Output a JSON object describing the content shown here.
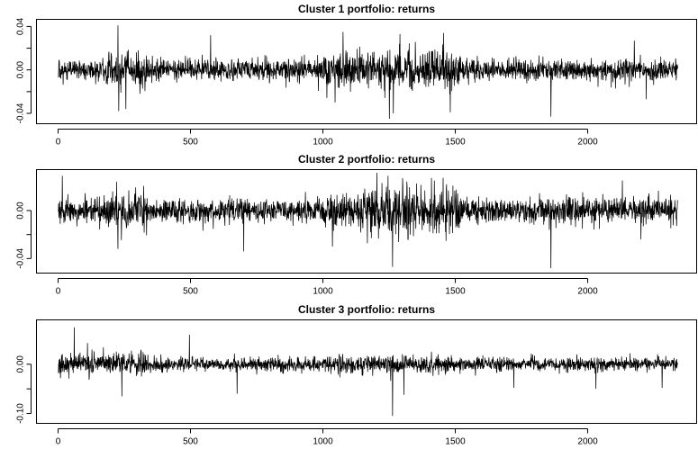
{
  "chart_data": [
    {
      "type": "line",
      "title": "Cluster 1 portfolio: returns",
      "xlabel": "",
      "ylabel": "",
      "xlim": [
        0,
        2340
      ],
      "ylim": [
        -0.045,
        0.042
      ],
      "xticks": [
        0,
        500,
        1000,
        1500,
        2000
      ],
      "xtick_labels": [
        "0",
        "500",
        "1000",
        "1500",
        "2000"
      ],
      "yticks": [
        -0.04,
        0.0,
        0.04
      ],
      "ytick_labels": [
        "-0.04",
        "0.00",
        "0.04"
      ],
      "grid": false,
      "color": "#000000",
      "n_points": 2340,
      "base_sd": 0.0065,
      "regimes": [
        {
          "x": [
            0,
            180
          ],
          "sd": 0.006
        },
        {
          "x": [
            180,
            340
          ],
          "sd": 0.01
        },
        {
          "x": [
            340,
            1000
          ],
          "sd": 0.006
        },
        {
          "x": [
            1000,
            1150
          ],
          "sd": 0.01
        },
        {
          "x": [
            1150,
            1520
          ],
          "sd": 0.011
        },
        {
          "x": [
            1520,
            1800
          ],
          "sd": 0.006
        },
        {
          "x": [
            1800,
            2340
          ],
          "sd": 0.006
        }
      ],
      "spikes": [
        {
          "x": 225,
          "y": 0.041
        },
        {
          "x": 228,
          "y": -0.038
        },
        {
          "x": 255,
          "y": -0.036
        },
        {
          "x": 575,
          "y": 0.032
        },
        {
          "x": 1045,
          "y": -0.03
        },
        {
          "x": 1075,
          "y": 0.035
        },
        {
          "x": 1250,
          "y": -0.045
        },
        {
          "x": 1265,
          "y": -0.04
        },
        {
          "x": 1290,
          "y": 0.033
        },
        {
          "x": 1455,
          "y": 0.034
        },
        {
          "x": 1480,
          "y": -0.039
        },
        {
          "x": 1860,
          "y": -0.043
        },
        {
          "x": 2175,
          "y": 0.027
        },
        {
          "x": 2220,
          "y": -0.027
        }
      ]
    },
    {
      "type": "line",
      "title": "Cluster 2 portfolio: returns",
      "xlabel": "",
      "ylabel": "",
      "xlim": [
        0,
        2340
      ],
      "ylim": [
        -0.048,
        0.03
      ],
      "xticks": [
        0,
        500,
        1000,
        1500,
        2000
      ],
      "xtick_labels": [
        "0",
        "500",
        "1000",
        "1500",
        "2000"
      ],
      "yticks": [
        -0.04,
        0.0
      ],
      "ytick_labels": [
        "-0.04",
        "0.00"
      ],
      "grid": false,
      "color": "#000000",
      "n_points": 2340,
      "base_sd": 0.006,
      "regimes": [
        {
          "x": [
            0,
            180
          ],
          "sd": 0.006
        },
        {
          "x": [
            180,
            340
          ],
          "sd": 0.009
        },
        {
          "x": [
            340,
            1000
          ],
          "sd": 0.006
        },
        {
          "x": [
            1000,
            1150
          ],
          "sd": 0.008
        },
        {
          "x": [
            1150,
            1520
          ],
          "sd": 0.011
        },
        {
          "x": [
            1520,
            1800
          ],
          "sd": 0.006
        },
        {
          "x": [
            1800,
            2340
          ],
          "sd": 0.0065
        }
      ],
      "spikes": [
        {
          "x": 15,
          "y": 0.029
        },
        {
          "x": 225,
          "y": -0.032
        },
        {
          "x": 700,
          "y": -0.034
        },
        {
          "x": 1035,
          "y": -0.03
        },
        {
          "x": 1245,
          "y": 0.029
        },
        {
          "x": 1262,
          "y": -0.047
        },
        {
          "x": 1300,
          "y": 0.027
        },
        {
          "x": 1420,
          "y": 0.025
        },
        {
          "x": 1860,
          "y": -0.048
        },
        {
          "x": 2130,
          "y": 0.025
        },
        {
          "x": 2200,
          "y": -0.024
        }
      ]
    },
    {
      "type": "line",
      "title": "Cluster 3 portfolio: returns",
      "xlabel": "",
      "ylabel": "",
      "xlim": [
        0,
        2340
      ],
      "ylim": [
        -0.11,
        0.08
      ],
      "xticks": [
        0,
        500,
        1000,
        1500,
        2000
      ],
      "xtick_labels": [
        "0",
        "500",
        "1000",
        "1500",
        "2000"
      ],
      "yticks": [
        -0.1,
        0.0
      ],
      "ytick_labels": [
        "-0.10",
        "0.00"
      ],
      "grid": false,
      "color": "#000000",
      "n_points": 2340,
      "base_sd": 0.009,
      "regimes": [
        {
          "x": [
            0,
            350
          ],
          "sd": 0.014
        },
        {
          "x": [
            350,
            1000
          ],
          "sd": 0.008
        },
        {
          "x": [
            1000,
            1500
          ],
          "sd": 0.01
        },
        {
          "x": [
            1500,
            2340
          ],
          "sd": 0.008
        }
      ],
      "spikes": [
        {
          "x": 60,
          "y": 0.075
        },
        {
          "x": 240,
          "y": -0.065
        },
        {
          "x": 495,
          "y": 0.06
        },
        {
          "x": 675,
          "y": -0.06
        },
        {
          "x": 1262,
          "y": -0.105
        },
        {
          "x": 1305,
          "y": -0.062
        },
        {
          "x": 1720,
          "y": -0.048
        },
        {
          "x": 2030,
          "y": -0.05
        },
        {
          "x": 2280,
          "y": -0.048
        }
      ]
    }
  ]
}
